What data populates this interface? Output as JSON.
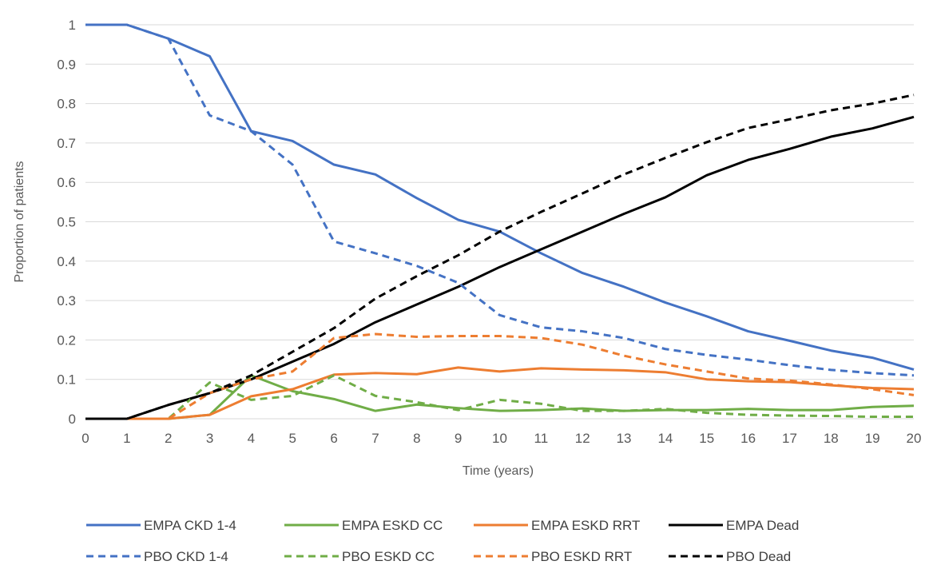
{
  "chart_data": {
    "type": "line",
    "title": "",
    "xlabel": "Time (years)",
    "ylabel": "Proportion of patients",
    "xlim": [
      0,
      20
    ],
    "ylim": [
      0,
      1
    ],
    "grid": true,
    "legend_position": "bottom",
    "x": [
      0,
      1,
      2,
      3,
      4,
      5,
      6,
      7,
      8,
      9,
      10,
      11,
      12,
      13,
      14,
      15,
      16,
      17,
      18,
      19,
      20
    ],
    "x_tick_labels": [
      "0",
      "1",
      "2",
      "3",
      "4",
      "5",
      "6",
      "7",
      "8",
      "9",
      "10",
      "11",
      "12",
      "13",
      "14",
      "15",
      "16",
      "17",
      "18",
      "19",
      "20"
    ],
    "y_ticks": [
      0,
      0.1,
      0.2,
      0.3,
      0.4,
      0.5,
      0.6,
      0.7,
      0.8,
      0.9,
      1
    ],
    "y_tick_labels": [
      "0",
      "0.1",
      "0.2",
      "0.3",
      "0.4",
      "0.5",
      "0.6",
      "0.7",
      "0.8",
      "0.9",
      "1"
    ],
    "series": [
      {
        "name": "EMPA CKD 1-4",
        "color": "#4472C4",
        "dash": "solid",
        "values": [
          1,
          1,
          0.965,
          0.92,
          0.73,
          0.705,
          0.645,
          0.62,
          0.56,
          0.505,
          0.475,
          0.42,
          0.37,
          0.335,
          0.295,
          0.26,
          0.222,
          0.198,
          0.173,
          0.155,
          0.125
        ]
      },
      {
        "name": "EMPA ESKD CC",
        "color": "#70AD47",
        "dash": "solid",
        "values": [
          0,
          0,
          0,
          0.01,
          0.11,
          0.07,
          0.05,
          0.02,
          0.036,
          0.027,
          0.02,
          0.022,
          0.026,
          0.02,
          0.022,
          0.022,
          0.025,
          0.022,
          0.022,
          0.03,
          0.033
        ]
      },
      {
        "name": "EMPA ESKD RRT",
        "color": "#ED7D31",
        "dash": "solid",
        "values": [
          0,
          0,
          0,
          0.01,
          0.057,
          0.075,
          0.112,
          0.116,
          0.113,
          0.13,
          0.12,
          0.128,
          0.125,
          0.123,
          0.118,
          0.1,
          0.095,
          0.093,
          0.085,
          0.078,
          0.075
        ]
      },
      {
        "name": "EMPA Dead",
        "color": "#000000",
        "dash": "solid",
        "values": [
          0,
          0,
          0.035,
          0.065,
          0.1,
          0.145,
          0.19,
          0.245,
          0.29,
          0.335,
          0.385,
          0.43,
          0.475,
          0.52,
          0.562,
          0.618,
          0.657,
          0.685,
          0.716,
          0.737,
          0.766
        ]
      },
      {
        "name": "PBO CKD 1-4",
        "color": "#4472C4",
        "dash": "dashed",
        "values": [
          1,
          1,
          0.965,
          0.77,
          0.73,
          0.645,
          0.45,
          0.42,
          0.388,
          0.345,
          0.263,
          0.232,
          0.222,
          0.205,
          0.177,
          0.162,
          0.15,
          0.136,
          0.124,
          0.116,
          0.11
        ]
      },
      {
        "name": "PBO ESKD CC",
        "color": "#70AD47",
        "dash": "dashed",
        "values": [
          0,
          0,
          0,
          0.092,
          0.048,
          0.058,
          0.11,
          0.058,
          0.042,
          0.022,
          0.048,
          0.038,
          0.02,
          0.02,
          0.025,
          0.015,
          0.01,
          0.008,
          0.007,
          0.005,
          0.005
        ]
      },
      {
        "name": "PBO ESKD RRT",
        "color": "#ED7D31",
        "dash": "dashed",
        "values": [
          0,
          0,
          0,
          0.065,
          0.1,
          0.12,
          0.205,
          0.215,
          0.208,
          0.21,
          0.21,
          0.205,
          0.188,
          0.16,
          0.138,
          0.12,
          0.102,
          0.097,
          0.087,
          0.075,
          0.06
        ]
      },
      {
        "name": "PBO Dead",
        "color": "#000000",
        "dash": "dashed",
        "values": [
          0,
          0,
          0.035,
          0.065,
          0.11,
          0.17,
          0.23,
          0.305,
          0.362,
          0.415,
          0.475,
          0.525,
          0.572,
          0.62,
          0.662,
          0.702,
          0.738,
          0.76,
          0.783,
          0.8,
          0.822
        ]
      }
    ]
  }
}
